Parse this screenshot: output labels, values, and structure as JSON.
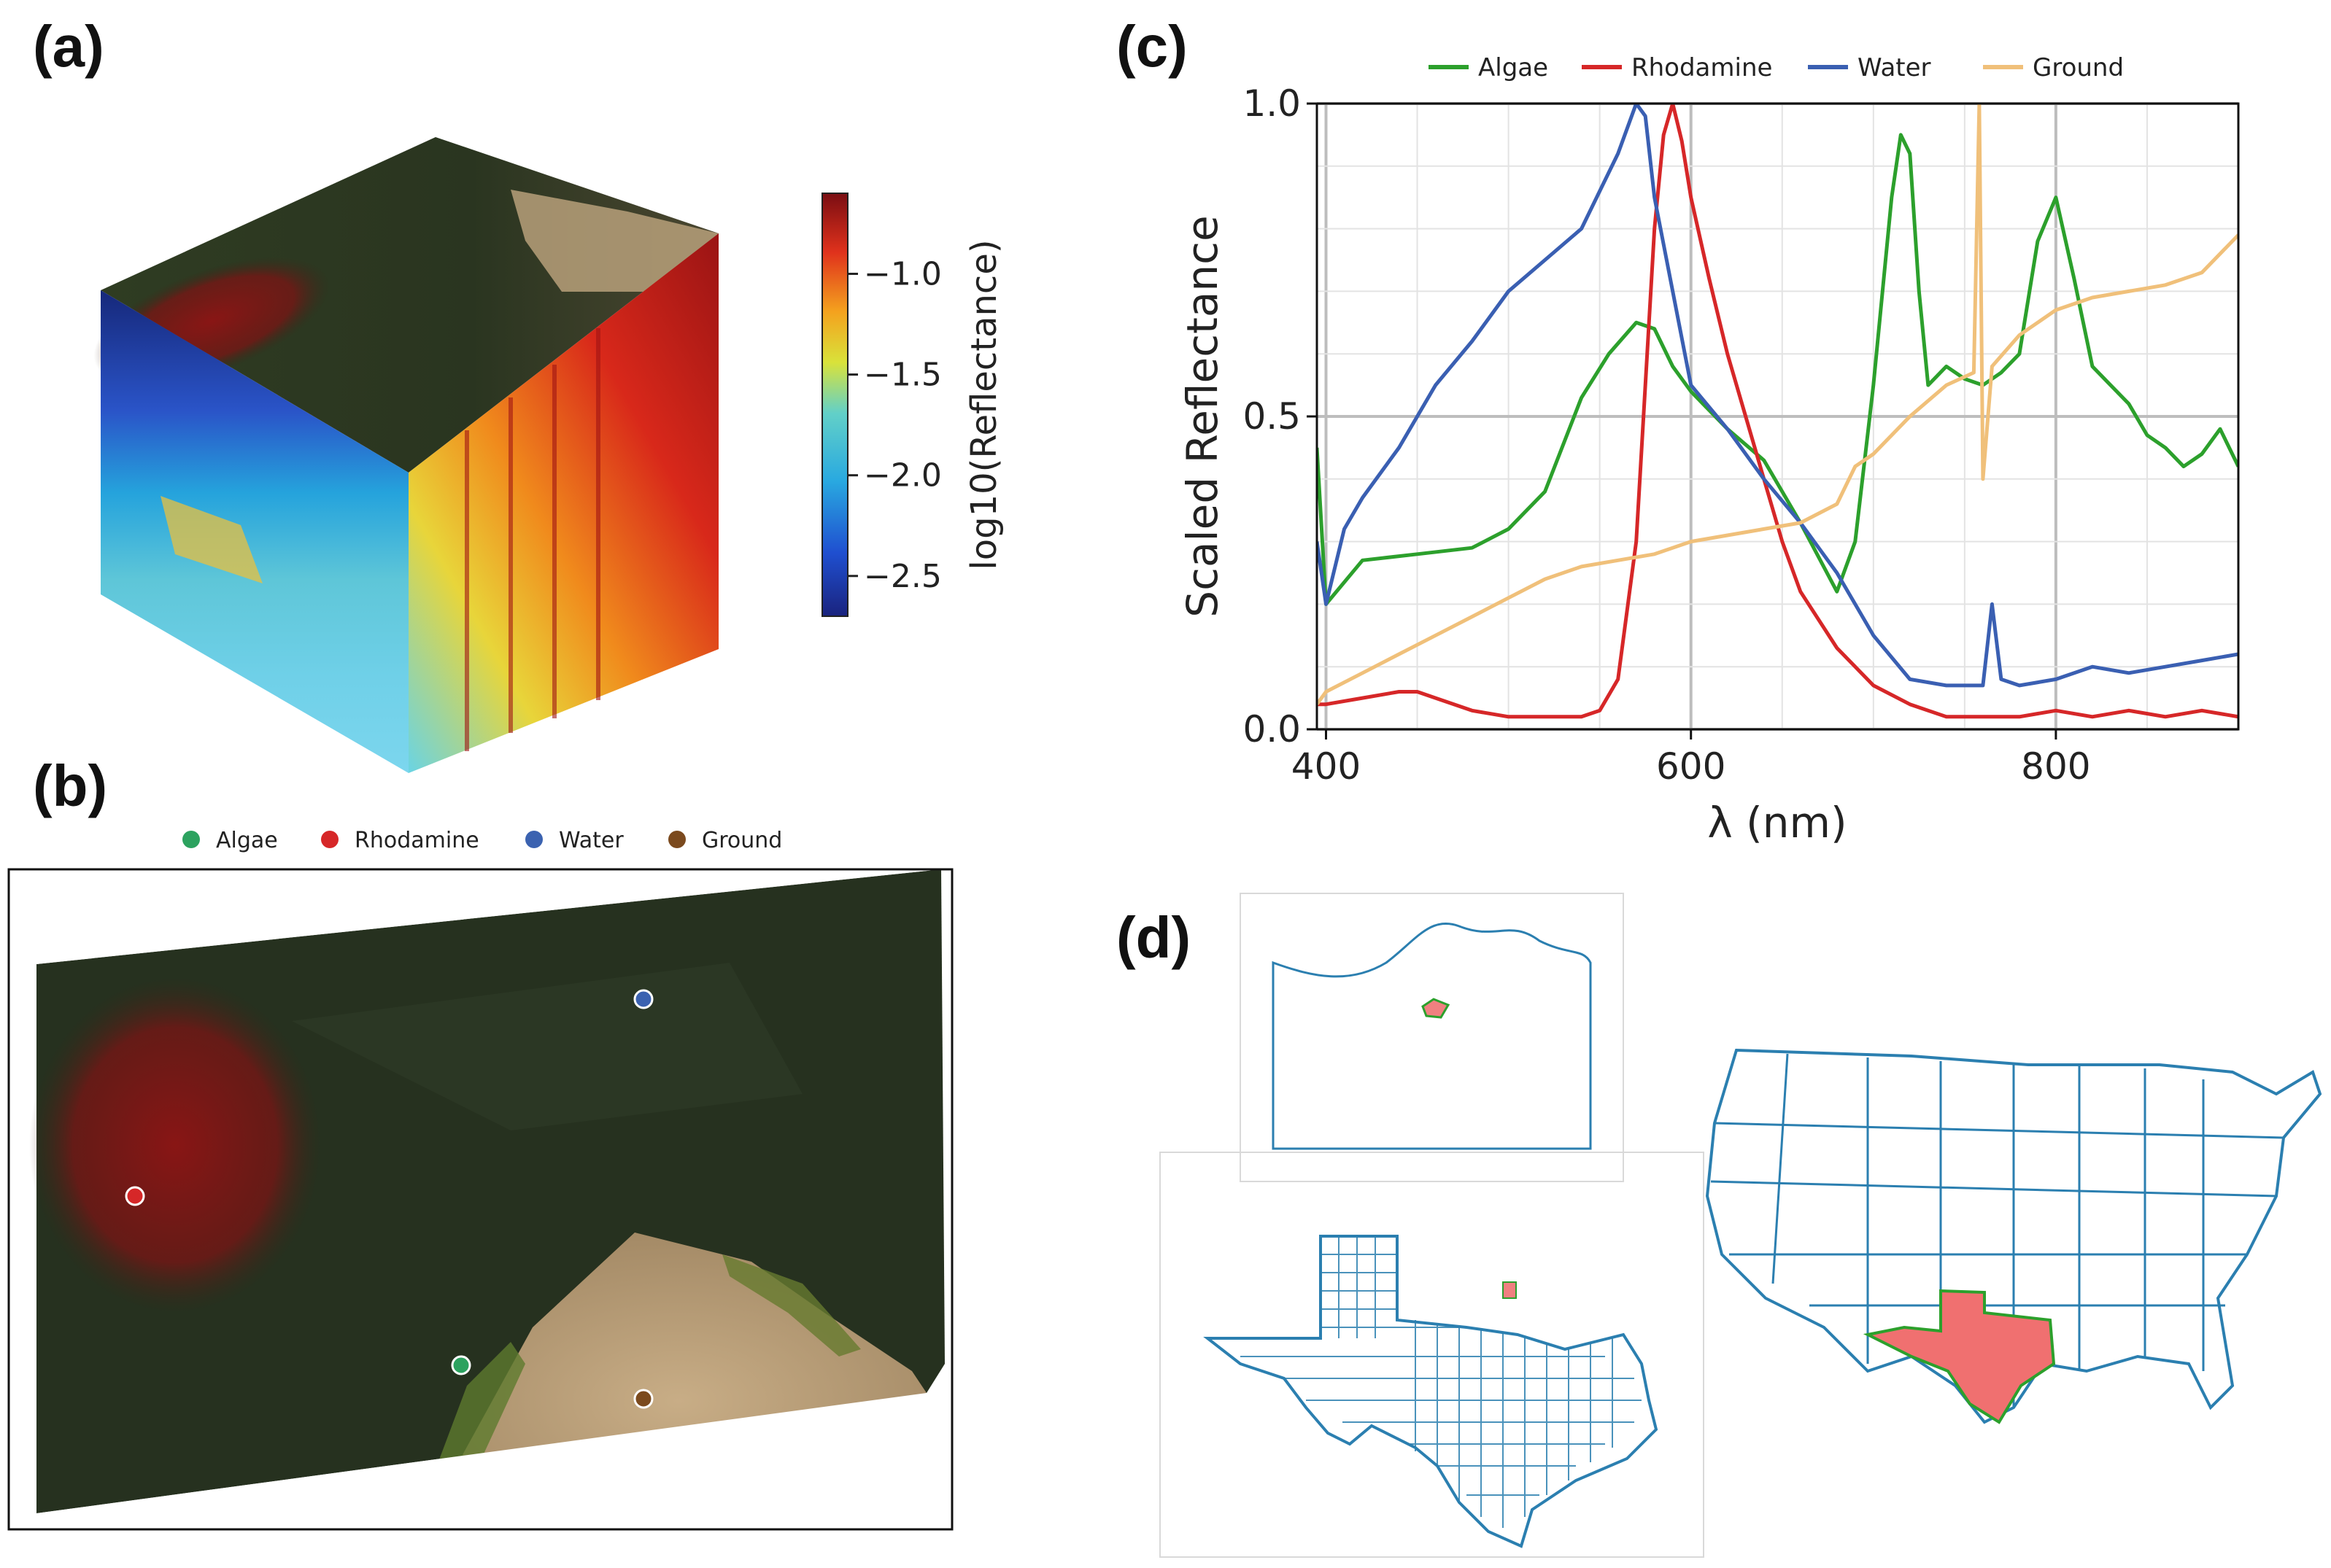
{
  "panels": {
    "a": {
      "label": "(a)"
    },
    "b": {
      "label": "(b)"
    },
    "c": {
      "label": "(c)"
    },
    "d": {
      "label": "(d)"
    }
  },
  "colorbar": {
    "label": "log10(Reflectance)",
    "ticks": [
      "−1.0",
      "−1.5",
      "−2.0",
      "−2.5"
    ],
    "tick_values": [
      -1.0,
      -1.5,
      -2.0,
      -2.5
    ],
    "range": [
      -2.7,
      -0.6
    ],
    "colormap": "jet"
  },
  "map_legend": {
    "items": [
      {
        "name": "Algae",
        "color": "#2ca25f"
      },
      {
        "name": "Rhodamine",
        "color": "#d62728"
      },
      {
        "name": "Water",
        "color": "#3b62b0"
      },
      {
        "name": "Ground",
        "color": "#7b4a1e"
      }
    ]
  },
  "chart_data": {
    "type": "line",
    "title": "",
    "xlabel": "λ (nm)",
    "ylabel": "Scaled Reflectance",
    "xlim": [
      395,
      900
    ],
    "ylim": [
      0.0,
      1.0
    ],
    "xticks": [
      400,
      600,
      800
    ],
    "xtick_labels": [
      "400",
      "600",
      "800"
    ],
    "yticks": [
      0.0,
      0.5,
      1.0
    ],
    "ytick_labels": [
      "0.0",
      "0.5",
      "1.0"
    ],
    "grid": true,
    "legend_position": "top",
    "series": [
      {
        "name": "Algae",
        "color": "#2ca02c",
        "x": [
          395,
          400,
          420,
          450,
          480,
          500,
          520,
          540,
          555,
          570,
          580,
          590,
          600,
          620,
          640,
          660,
          680,
          690,
          700,
          710,
          715,
          720,
          725,
          730,
          740,
          750,
          760,
          770,
          780,
          790,
          800,
          810,
          820,
          830,
          840,
          850,
          860,
          870,
          880,
          890,
          900
        ],
        "y": [
          0.45,
          0.2,
          0.27,
          0.28,
          0.29,
          0.32,
          0.38,
          0.53,
          0.6,
          0.65,
          0.64,
          0.58,
          0.54,
          0.48,
          0.43,
          0.33,
          0.22,
          0.3,
          0.55,
          0.85,
          0.95,
          0.92,
          0.7,
          0.55,
          0.58,
          0.56,
          0.55,
          0.57,
          0.6,
          0.78,
          0.85,
          0.72,
          0.58,
          0.55,
          0.52,
          0.47,
          0.45,
          0.42,
          0.44,
          0.48,
          0.42
        ]
      },
      {
        "name": "Rhodamine",
        "color": "#d62728",
        "x": [
          395,
          400,
          420,
          440,
          450,
          460,
          480,
          500,
          520,
          540,
          550,
          560,
          570,
          575,
          580,
          585,
          590,
          595,
          600,
          610,
          620,
          630,
          640,
          650,
          660,
          680,
          700,
          720,
          740,
          760,
          780,
          800,
          820,
          840,
          860,
          880,
          900
        ],
        "y": [
          0.04,
          0.04,
          0.05,
          0.06,
          0.06,
          0.05,
          0.03,
          0.02,
          0.02,
          0.02,
          0.03,
          0.08,
          0.3,
          0.55,
          0.8,
          0.95,
          1.0,
          0.94,
          0.85,
          0.72,
          0.6,
          0.5,
          0.4,
          0.3,
          0.22,
          0.13,
          0.07,
          0.04,
          0.02,
          0.02,
          0.02,
          0.03,
          0.02,
          0.03,
          0.02,
          0.03,
          0.02
        ]
      },
      {
        "name": "Water",
        "color": "#3a5fb2",
        "x": [
          395,
          400,
          410,
          420,
          440,
          460,
          480,
          500,
          520,
          540,
          560,
          570,
          575,
          580,
          590,
          600,
          620,
          640,
          660,
          680,
          700,
          720,
          740,
          760,
          765,
          770,
          780,
          800,
          820,
          840,
          860,
          880,
          900
        ],
        "y": [
          0.3,
          0.2,
          0.32,
          0.37,
          0.45,
          0.55,
          0.62,
          0.7,
          0.75,
          0.8,
          0.92,
          1.0,
          0.98,
          0.85,
          0.7,
          0.55,
          0.48,
          0.4,
          0.33,
          0.25,
          0.15,
          0.08,
          0.07,
          0.07,
          0.2,
          0.08,
          0.07,
          0.08,
          0.1,
          0.09,
          0.1,
          0.11,
          0.12
        ]
      },
      {
        "name": "Ground",
        "color": "#f0c07a",
        "x": [
          395,
          400,
          420,
          440,
          460,
          480,
          500,
          520,
          540,
          560,
          580,
          600,
          620,
          640,
          660,
          680,
          690,
          700,
          720,
          740,
          755,
          758,
          760,
          765,
          780,
          800,
          820,
          840,
          860,
          880,
          900
        ],
        "y": [
          0.04,
          0.06,
          0.09,
          0.12,
          0.15,
          0.18,
          0.21,
          0.24,
          0.26,
          0.27,
          0.28,
          0.3,
          0.31,
          0.32,
          0.33,
          0.36,
          0.42,
          0.44,
          0.5,
          0.55,
          0.57,
          1.0,
          0.4,
          0.58,
          0.63,
          0.67,
          0.69,
          0.7,
          0.71,
          0.73,
          0.79
        ]
      }
    ]
  }
}
